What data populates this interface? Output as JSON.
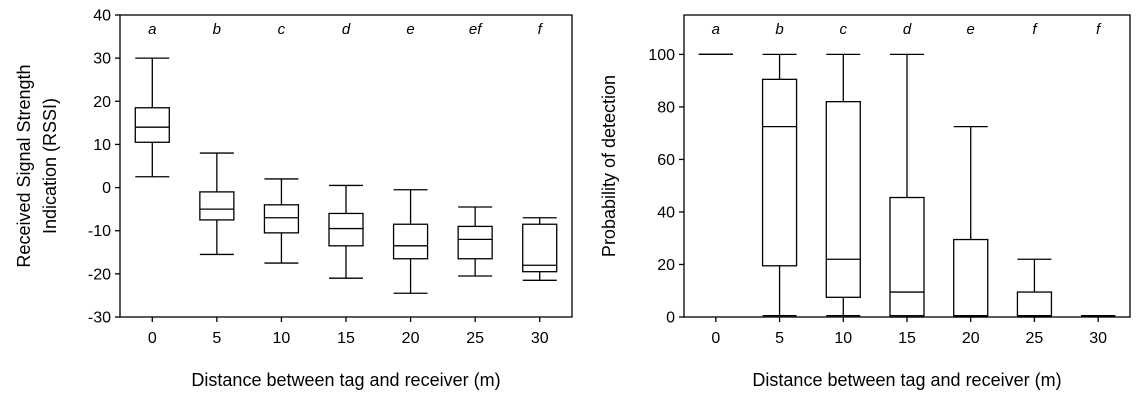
{
  "chart_data": [
    {
      "type": "box",
      "xlabel": "Distance between tag and receiver (m)",
      "ylabel_lines": [
        "Received Signal Strength",
        "Indication (RSSI)"
      ],
      "ylim": [
        -30,
        40
      ],
      "yticks": [
        -30,
        -20,
        -10,
        0,
        10,
        20,
        30,
        40
      ],
      "categories": [
        "0",
        "5",
        "10",
        "15",
        "20",
        "25",
        "30"
      ],
      "significance_letters": [
        "a",
        "b",
        "c",
        "d",
        "e",
        "ef",
        "f"
      ],
      "boxes": [
        {
          "min": 2.5,
          "q1": 10.5,
          "median": 14,
          "q3": 18.5,
          "max": 30
        },
        {
          "min": -15.5,
          "q1": -7.5,
          "median": -5,
          "q3": -1,
          "max": 8
        },
        {
          "min": -17.5,
          "q1": -10.5,
          "median": -7,
          "q3": -4,
          "max": 2
        },
        {
          "min": -21,
          "q1": -13.5,
          "median": -9.5,
          "q3": -6,
          "max": 0.5
        },
        {
          "min": -24.5,
          "q1": -16.5,
          "median": -13.5,
          "q3": -8.5,
          "max": -0.5
        },
        {
          "min": -20.5,
          "q1": -16.5,
          "median": -12,
          "q3": -9,
          "max": -4.5
        },
        {
          "min": -21.5,
          "q1": -19.5,
          "median": -18,
          "q3": -8.5,
          "max": -7
        }
      ]
    },
    {
      "type": "box",
      "xlabel": "Distance between tag and receiver (m)",
      "ylabel_lines": [
        "Probability of detection"
      ],
      "ylim": [
        0,
        115
      ],
      "yticks": [
        0,
        20,
        40,
        60,
        80,
        100
      ],
      "categories": [
        "0",
        "5",
        "10",
        "15",
        "20",
        "25",
        "30"
      ],
      "significance_letters": [
        "a",
        "b",
        "c",
        "d",
        "e",
        "f",
        "f"
      ],
      "boxes": [
        {
          "min": 100,
          "q1": 100,
          "median": 100,
          "q3": 100,
          "max": 100
        },
        {
          "min": 0.5,
          "q1": 19.5,
          "median": 72.5,
          "q3": 90.5,
          "max": 100
        },
        {
          "min": 0.5,
          "q1": 7.5,
          "median": 22,
          "q3": 82,
          "max": 100
        },
        {
          "min": 0,
          "q1": 0.5,
          "median": 9.5,
          "q3": 45.5,
          "max": 100
        },
        {
          "min": 0,
          "q1": 0.5,
          "median": 0.5,
          "q3": 29.5,
          "max": 72.5
        },
        {
          "min": 0,
          "q1": 0.5,
          "median": 0.5,
          "q3": 9.5,
          "max": 22
        },
        {
          "min": 0.5,
          "q1": 0.5,
          "median": 0.5,
          "q3": 0.5,
          "max": 0.5
        }
      ]
    }
  ]
}
